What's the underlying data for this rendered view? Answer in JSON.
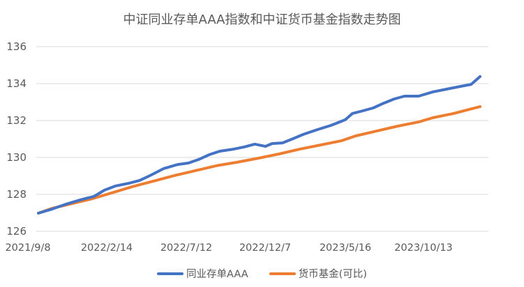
{
  "chart_data": {
    "type": "line",
    "title": "中证同业存单AAA指数和中证货币基金指数走势图",
    "xlabel": "",
    "ylabel": "",
    "ylim": [
      126,
      136
    ],
    "yticks": [
      126,
      128,
      130,
      132,
      134,
      136
    ],
    "xtick_labels": [
      "2021/9/8",
      "2022/2/14",
      "2022/7/12",
      "2022/12/7",
      "2023/5/16",
      "2023/10/13"
    ],
    "grid": "horizontal",
    "legend_position": "bottom",
    "series": [
      {
        "name": "同业存单AAA",
        "color": "#4472C4",
        "x_frac": [
          0,
          0.032,
          0.063,
          0.095,
          0.126,
          0.15,
          0.174,
          0.205,
          0.229,
          0.253,
          0.284,
          0.316,
          0.34,
          0.363,
          0.387,
          0.411,
          0.442,
          0.466,
          0.49,
          0.514,
          0.529,
          0.553,
          0.577,
          0.6,
          0.632,
          0.663,
          0.695,
          0.711,
          0.735,
          0.758,
          0.782,
          0.806,
          0.829,
          0.861,
          0.893,
          0.924,
          0.956,
          0.98,
          1.0
        ],
        "values": [
          126.98,
          127.21,
          127.47,
          127.7,
          127.89,
          128.23,
          128.45,
          128.6,
          128.75,
          129.02,
          129.4,
          129.62,
          129.7,
          129.89,
          130.15,
          130.34,
          130.45,
          130.57,
          130.72,
          130.6,
          130.75,
          130.79,
          131.02,
          131.25,
          131.51,
          131.74,
          132.04,
          132.38,
          132.53,
          132.68,
          132.94,
          133.17,
          133.32,
          133.32,
          133.55,
          133.7,
          133.85,
          133.96,
          134.38
        ]
      },
      {
        "name": "货币基金(可比)",
        "color": "#ED7D31",
        "x_frac": [
          0,
          0.032,
          0.071,
          0.118,
          0.166,
          0.213,
          0.261,
          0.308,
          0.355,
          0.403,
          0.45,
          0.498,
          0.545,
          0.592,
          0.64,
          0.687,
          0.719,
          0.766,
          0.814,
          0.861,
          0.893,
          0.94,
          1.0
        ],
        "values": [
          126.98,
          127.25,
          127.47,
          127.74,
          128.08,
          128.42,
          128.72,
          129.02,
          129.28,
          129.55,
          129.74,
          129.96,
          130.19,
          130.45,
          130.68,
          130.91,
          131.17,
          131.43,
          131.7,
          131.92,
          132.15,
          132.38,
          132.75
        ]
      }
    ]
  },
  "legend": {
    "items": [
      {
        "label": "同业存单AAA",
        "color": "#4472C4"
      },
      {
        "label": "货币基金(可比)",
        "color": "#ED7D31"
      }
    ]
  }
}
